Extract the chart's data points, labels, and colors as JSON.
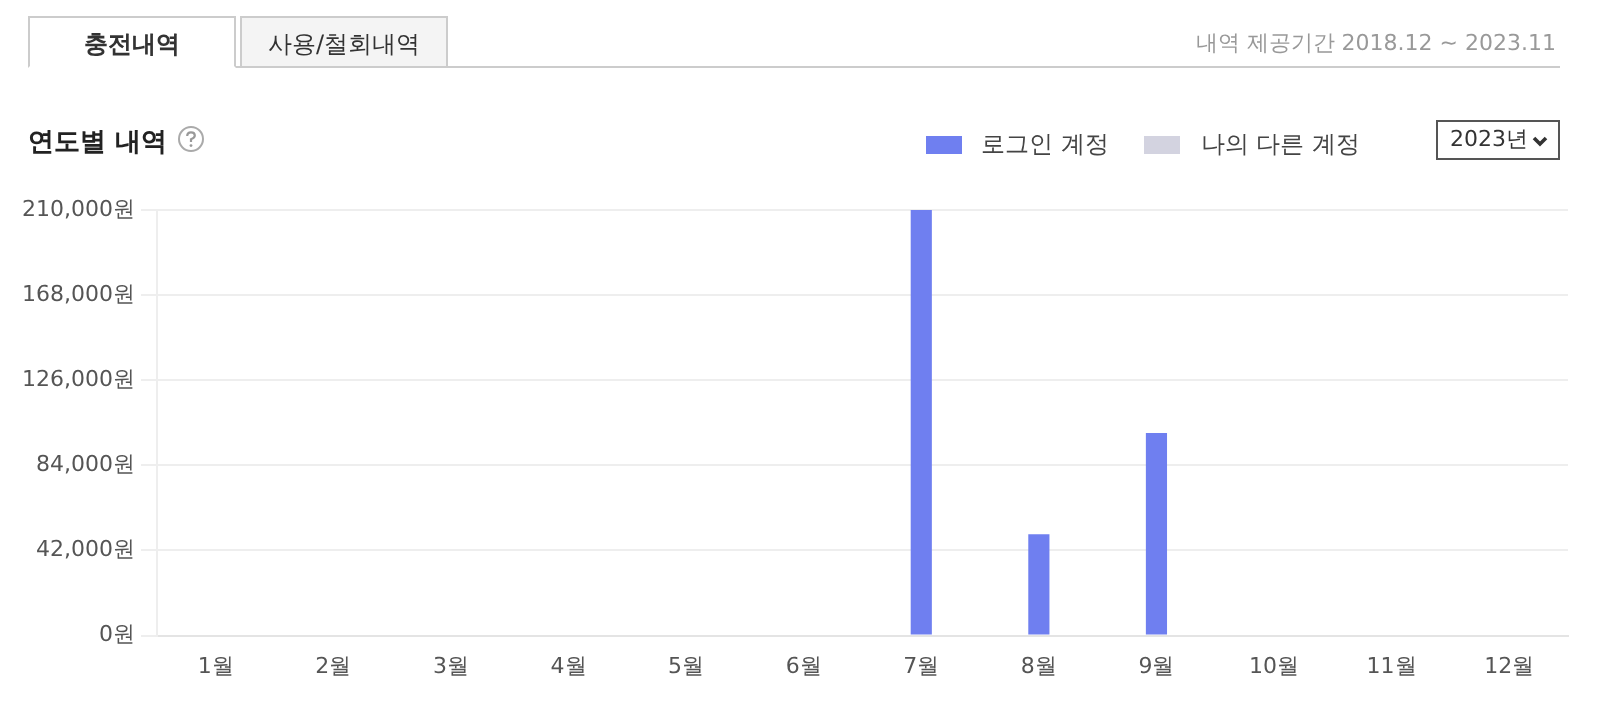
{
  "chart_data": {
    "type": "bar",
    "title": "연도별 내역",
    "categories": [
      "1월",
      "2월",
      "3월",
      "4월",
      "5월",
      "6월",
      "7월",
      "8월",
      "9월",
      "10월",
      "11월",
      "12월"
    ],
    "series": [
      {
        "name": "로그인 계정",
        "color": "#6f7ff0",
        "values": [
          0,
          0,
          0,
          0,
          0,
          0,
          210000,
          50000,
          100000,
          0,
          0,
          0
        ]
      },
      {
        "name": "나의 다른 계정",
        "color": "#d3d3e0",
        "values": [
          0,
          0,
          0,
          0,
          0,
          0,
          0,
          0,
          0,
          0,
          0,
          0
        ]
      }
    ],
    "ylim": [
      0,
      210000
    ],
    "yticks": [
      {
        "value": 0,
        "label": "0원"
      },
      {
        "value": 42000,
        "label": "42,000원"
      },
      {
        "value": 84000,
        "label": "84,000원"
      },
      {
        "value": 126000,
        "label": "126,000원"
      },
      {
        "value": 168000,
        "label": "168,000원"
      },
      {
        "value": 210000,
        "label": "210,000원"
      }
    ],
    "grid": "y",
    "legend": "top right",
    "annotations": [
      "충전내역",
      "사용/철회내역",
      "내역 제공기간 2018.12 ~ 2023.11",
      "2023년"
    ]
  }
}
